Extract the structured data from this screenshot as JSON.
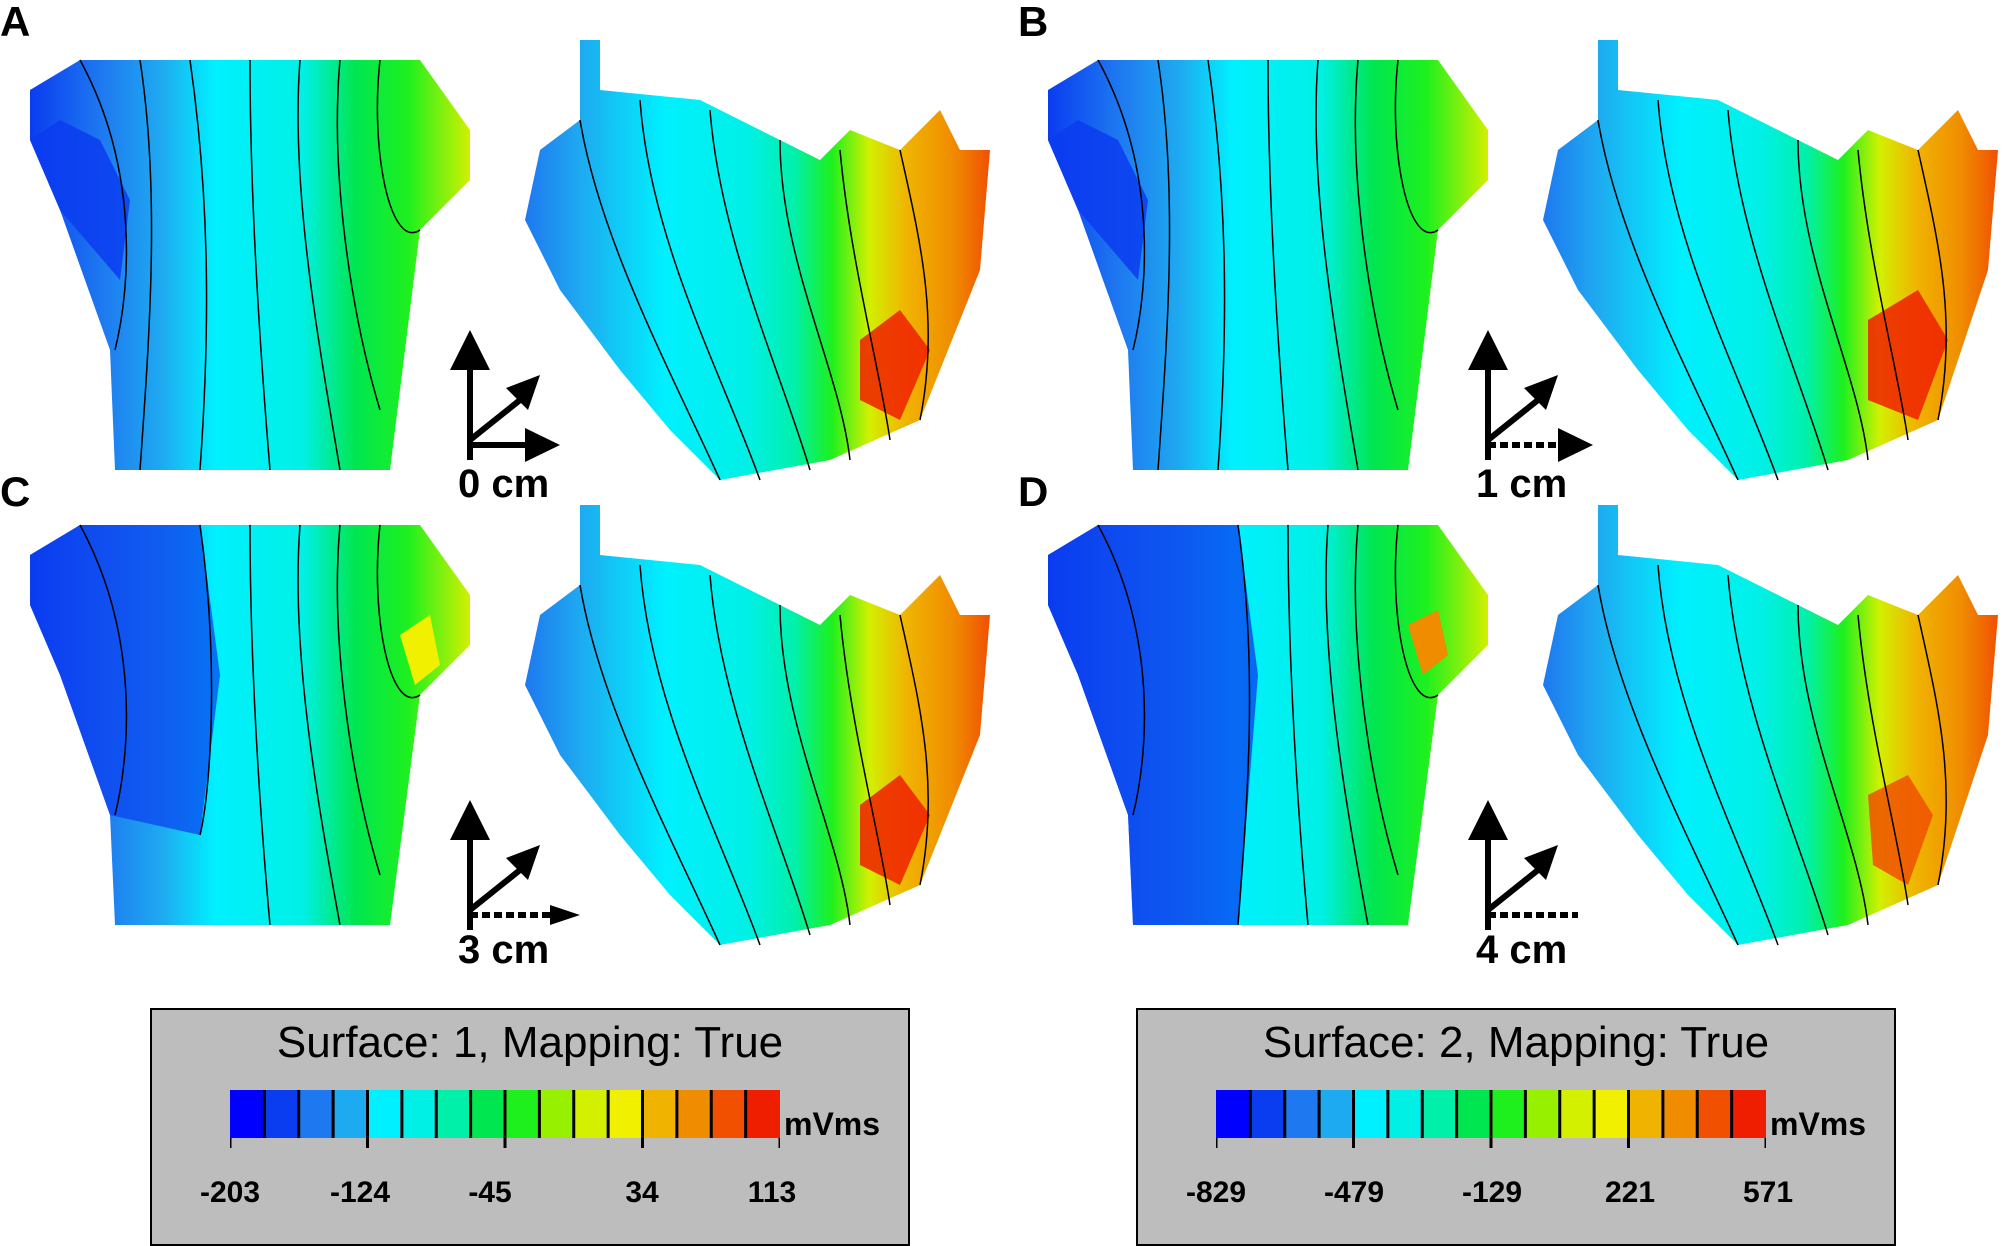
{
  "panels": [
    {
      "letter": "A",
      "distance": "0 cm"
    },
    {
      "letter": "B",
      "distance": "1 cm"
    },
    {
      "letter": "C",
      "distance": "3 cm"
    },
    {
      "letter": "D",
      "distance": "4 cm"
    }
  ],
  "colorbar_colors": [
    "#0000ff",
    "#0a3cf0",
    "#1e78f0",
    "#1eaaf0",
    "#00f0ff",
    "#00f0e6",
    "#00f0aa",
    "#00e650",
    "#1ef01e",
    "#96f000",
    "#d2f000",
    "#f0f000",
    "#f0b400",
    "#f08c00",
    "#f05000",
    "#f01e00"
  ],
  "legends": [
    {
      "title": "Surface: 1, Mapping: True",
      "unit": "mVms",
      "ticks": [
        "-203",
        "-124",
        "-45",
        "34",
        "113"
      ]
    },
    {
      "title": "Surface: 2, Mapping: True",
      "unit": "mVms",
      "ticks": [
        "-829",
        "-479",
        "-129",
        "221",
        "571"
      ]
    }
  ]
}
